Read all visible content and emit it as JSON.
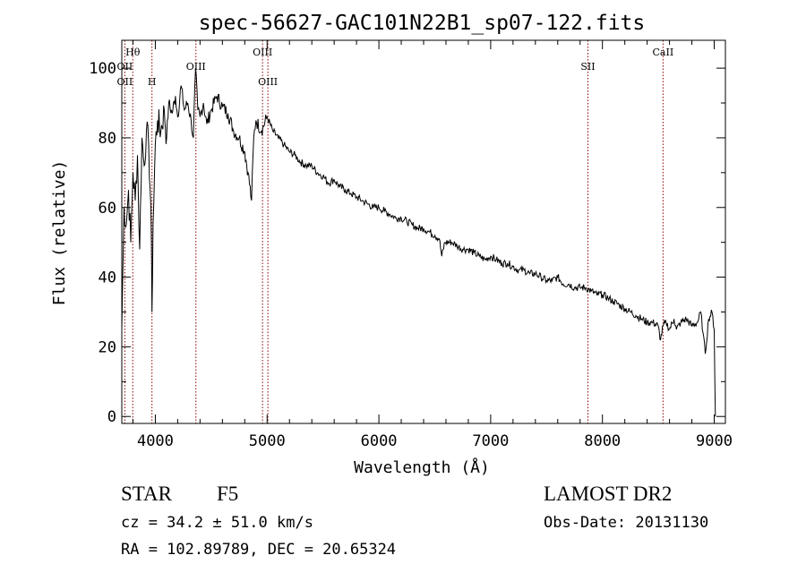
{
  "chart_data": {
    "type": "line",
    "title": "spec-56627-GAC101N22B1_sp07-122.fits",
    "xlabel": "Wavelength (Å)",
    "ylabel": "Flux (relative)",
    "xlim": [
      3700,
      9100
    ],
    "ylim": [
      -2,
      108
    ],
    "xticks": [
      4000,
      5000,
      6000,
      7000,
      8000,
      9000
    ],
    "yticks": [
      0,
      20,
      40,
      60,
      80,
      100
    ],
    "grid": false,
    "series": [
      {
        "x": [
          3700,
          3720,
          3740,
          3760,
          3780,
          3800,
          3820,
          3840,
          3860,
          3880,
          3900,
          3920,
          3940,
          3960,
          3970,
          3980,
          4000,
          4020,
          4050,
          4080,
          4101,
          4120,
          4150,
          4180,
          4200,
          4230,
          4260,
          4290,
          4320,
          4340,
          4360,
          4380,
          4400,
          4430,
          4460,
          4500,
          4550,
          4600,
          4650,
          4700,
          4750,
          4800,
          4830,
          4861,
          4880,
          4900,
          4950,
          5000,
          5050,
          5100,
          5150,
          5200,
          5250,
          5300,
          5350,
          5400,
          5450,
          5500,
          5550,
          5600,
          5650,
          5700,
          5750,
          5800,
          5850,
          5900,
          5950,
          6000,
          6050,
          6100,
          6150,
          6200,
          6250,
          6300,
          6350,
          6400,
          6450,
          6500,
          6540,
          6563,
          6590,
          6650,
          6700,
          6750,
          6800,
          6850,
          6900,
          6950,
          7000,
          7050,
          7100,
          7150,
          7200,
          7250,
          7300,
          7350,
          7400,
          7450,
          7500,
          7550,
          7600,
          7650,
          7700,
          7750,
          7800,
          7850,
          7900,
          7950,
          8000,
          8050,
          8100,
          8150,
          8200,
          8250,
          8300,
          8350,
          8400,
          8450,
          8498,
          8520,
          8542,
          8570,
          8600,
          8640,
          8662,
          8700,
          8750,
          8800,
          8850,
          8880,
          8900,
          8920,
          8950,
          8980,
          9000,
          9010
        ],
        "y": [
          25,
          60,
          55,
          65,
          50,
          70,
          62,
          75,
          48,
          80,
          72,
          82,
          78,
          60,
          30,
          55,
          78,
          85,
          82,
          88,
          80,
          90,
          87,
          92,
          86,
          95,
          88,
          90,
          85,
          80,
          100,
          88,
          86,
          90,
          84,
          88,
          92,
          89,
          87,
          82,
          80,
          76,
          70,
          62,
          80,
          85,
          82,
          86,
          82,
          80,
          78,
          76,
          75,
          73,
          72,
          72,
          70,
          69,
          67,
          68,
          66,
          65,
          64,
          63,
          62,
          61,
          60,
          60,
          59,
          58,
          57,
          57,
          56,
          55,
          54,
          54,
          53,
          52,
          51,
          46,
          50,
          50,
          49,
          48,
          48,
          47,
          46,
          45,
          46,
          45,
          44,
          44,
          43,
          42,
          42,
          41,
          41,
          40,
          39,
          39,
          40,
          38,
          38,
          37,
          37,
          37,
          36,
          35,
          35,
          34,
          33,
          32,
          31,
          30,
          29,
          28,
          27,
          27,
          26,
          22,
          26,
          27,
          25,
          28,
          25,
          27,
          28,
          26,
          27,
          30,
          24,
          18,
          28,
          30,
          25,
          0
        ]
      }
    ],
    "annotations": [
      {
        "label": "OII",
        "x": 3727,
        "row": 3
      },
      {
        "label": "OII",
        "x": 3727,
        "row": 2
      },
      {
        "label": "Hθ",
        "x": 3798,
        "row": 1
      },
      {
        "label": "H",
        "x": 3970,
        "row": 3
      },
      {
        "label": "OIII",
        "x": 4363,
        "row": 2
      },
      {
        "label": "OIII",
        "x": 4959,
        "row": 1
      },
      {
        "label": "OIII",
        "x": 5007,
        "row": 3
      },
      {
        "label": "SII",
        "x": 7870,
        "row": 2
      },
      {
        "label": "CaII",
        "x": 8542,
        "row": 1
      }
    ],
    "footer": {
      "object": "STAR",
      "subclass": "F5",
      "survey": "LAMOST DR2",
      "cz": "cz = 34.2 ± 51.0 km/s",
      "obs_date": "Obs-Date: 20131130",
      "coords": "RA = 102.89789, DEC =  20.65324"
    },
    "colors": {
      "spectrum": "#000000",
      "line_markers": "#8b0000"
    }
  }
}
